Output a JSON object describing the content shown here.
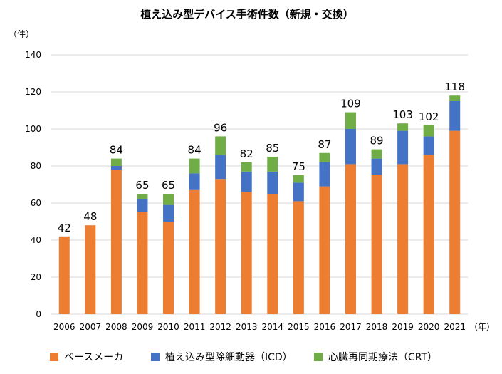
{
  "chart_data": {
    "type": "bar",
    "stacked": true,
    "title": "植え込み型デバイス手術件数（新規・交換）",
    "ylabel": "（件）",
    "xlabel": "（年）",
    "ylim": [
      0,
      140
    ],
    "yticks": [
      0,
      20,
      40,
      60,
      80,
      100,
      120,
      140
    ],
    "grid": true,
    "categories": [
      "2006",
      "2007",
      "2008",
      "2009",
      "2010",
      "2011",
      "2012",
      "2013",
      "2014",
      "2015",
      "2016",
      "2017",
      "2018",
      "2019",
      "2020",
      "2021"
    ],
    "series": [
      {
        "name": "ペースメーカ",
        "color": "#ED7D31",
        "values": [
          42,
          48,
          78,
          55,
          50,
          67,
          73,
          66,
          65,
          61,
          69,
          81,
          75,
          81,
          86,
          99
        ]
      },
      {
        "name": "植え込み型除細動器（ICD）",
        "color": "#4472C4",
        "values": [
          0,
          0,
          2,
          7,
          9,
          9,
          13,
          11,
          12,
          10,
          13,
          19,
          9,
          18,
          10,
          16
        ]
      },
      {
        "name": "心臓再同期療法（CRT）",
        "color": "#70AD47",
        "values": [
          0,
          0,
          4,
          3,
          6,
          8,
          10,
          5,
          8,
          4,
          5,
          9,
          5,
          4,
          6,
          3
        ]
      }
    ],
    "totals": [
      42,
      48,
      84,
      65,
      65,
      84,
      96,
      82,
      85,
      75,
      87,
      109,
      89,
      103,
      102,
      118
    ],
    "legend_position": "bottom"
  }
}
